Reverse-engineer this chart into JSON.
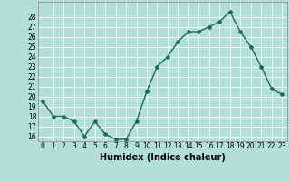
{
  "x": [
    0,
    1,
    2,
    3,
    4,
    5,
    6,
    7,
    8,
    9,
    10,
    11,
    12,
    13,
    14,
    15,
    16,
    17,
    18,
    19,
    20,
    21,
    22,
    23
  ],
  "y": [
    19.5,
    18.0,
    18.0,
    17.5,
    16.0,
    17.5,
    16.2,
    15.7,
    15.7,
    17.5,
    20.5,
    23.0,
    24.0,
    25.5,
    26.5,
    26.5,
    27.0,
    27.5,
    28.5,
    26.5,
    25.0,
    23.0,
    20.8,
    20.2
  ],
  "line_color": "#1a6b5a",
  "marker": "D",
  "marker_size": 2.0,
  "bg_color": "#b2dfdb",
  "grid_color": "#ffffff",
  "xlabel": "Humidex (Indice chaleur)",
  "ylim": [
    15.5,
    29.5
  ],
  "xlim": [
    -0.5,
    23.5
  ],
  "yticks": [
    16,
    17,
    18,
    19,
    20,
    21,
    22,
    23,
    24,
    25,
    26,
    27,
    28
  ],
  "xticks": [
    0,
    1,
    2,
    3,
    4,
    5,
    6,
    7,
    8,
    9,
    10,
    11,
    12,
    13,
    14,
    15,
    16,
    17,
    18,
    19,
    20,
    21,
    22,
    23
  ],
  "tick_fontsize": 5.5,
  "xlabel_fontsize": 7.0,
  "line_width": 1.0
}
